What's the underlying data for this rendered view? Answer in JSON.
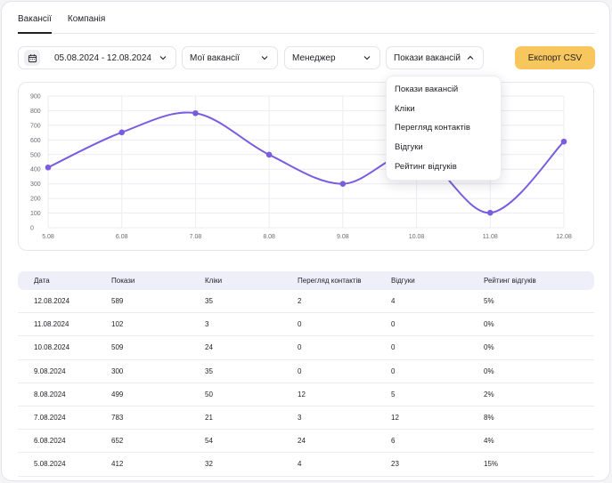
{
  "tabs": [
    {
      "label": "Вакансії",
      "active": true
    },
    {
      "label": "Компанія",
      "active": false
    }
  ],
  "filters": {
    "date_range": "05.08.2024 - 12.08.2024",
    "vacancies": "Мої вакансії",
    "manager": "Менеджер",
    "metric": "Покази вакансій",
    "calendar_icon": "calendar-icon"
  },
  "export_label": "Експорт CSV",
  "colors": {
    "accent": "#7a5ce0",
    "export": "#f7c65c",
    "grid": "#ececf2"
  },
  "metric_menu": {
    "open": true,
    "items": [
      "Покази вакансій",
      "Кліки",
      "Перегляд контактів",
      "Відгуки",
      "Рейтинг відгуків"
    ]
  },
  "chart_data": {
    "type": "line",
    "x": [
      "5.08",
      "6.08",
      "7.08",
      "8.08",
      "9.08",
      "10.08",
      "11.08",
      "12.08"
    ],
    "values": [
      412,
      652,
      783,
      499,
      300,
      509,
      102,
      589
    ],
    "ylim": [
      0,
      900
    ],
    "yticks": [
      0,
      100,
      200,
      300,
      400,
      500,
      600,
      700,
      800,
      900
    ],
    "grid": true,
    "smooth": true
  },
  "table": {
    "headers": [
      "Дата",
      "Покази",
      "Кліки",
      "Перегляд контактів",
      "Відгуки",
      "Рейтинг відгуків"
    ],
    "rows": [
      [
        "12.08.2024",
        "589",
        "35",
        "2",
        "4",
        "5%"
      ],
      [
        "11.08.2024",
        "102",
        "3",
        "0",
        "0",
        "0%"
      ],
      [
        "10.08.2024",
        "509",
        "24",
        "0",
        "0",
        "0%"
      ],
      [
        "9.08.2024",
        "300",
        "35",
        "0",
        "0",
        "0%"
      ],
      [
        "8.08.2024",
        "499",
        "50",
        "12",
        "5",
        "2%"
      ],
      [
        "7.08.2024",
        "783",
        "21",
        "3",
        "12",
        "8%"
      ],
      [
        "6.08.2024",
        "652",
        "54",
        "24",
        "6",
        "4%"
      ],
      [
        "5.08.2024",
        "412",
        "32",
        "4",
        "23",
        "15%"
      ]
    ]
  }
}
